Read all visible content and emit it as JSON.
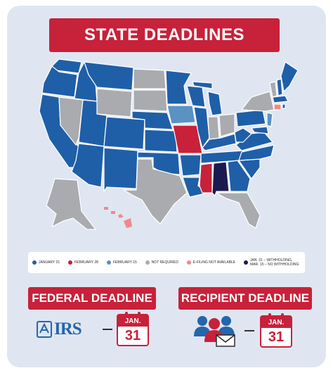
{
  "title": "STATE DEADLINES",
  "colors": {
    "jan31": "#1f5fa8",
    "feb28": "#c8213a",
    "feb15": "#5a92c4",
    "not_required": "#a9abae",
    "efiling_na": "#f08a8a",
    "split": "#1b1a4f",
    "banner": "#c8213a"
  },
  "legend": [
    {
      "label": "JANUARY 31",
      "color": "#1f5fa8"
    },
    {
      "label": "FEBRUARY 28",
      "color": "#c8213a"
    },
    {
      "label": "FEBRUARY 15",
      "color": "#5a92c4"
    },
    {
      "label": "NOT REQUIRED",
      "color": "#a9abae"
    },
    {
      "label": "E-FILING NOT AVAILABLE",
      "color": "#f08a8a"
    },
    {
      "label": "JAN. 31 – WITHHOLDING, MAR. 15 – NO WITHHOLDING",
      "color": "#1b1a4f"
    }
  ],
  "federal": {
    "title": "FEDERAL DEADLINE",
    "logo_text": "IRS",
    "cal_month": "JAN.",
    "cal_day": "31"
  },
  "recipient": {
    "title": "RECIPIENT DEADLINE",
    "cal_month": "JAN.",
    "cal_day": "31"
  }
}
